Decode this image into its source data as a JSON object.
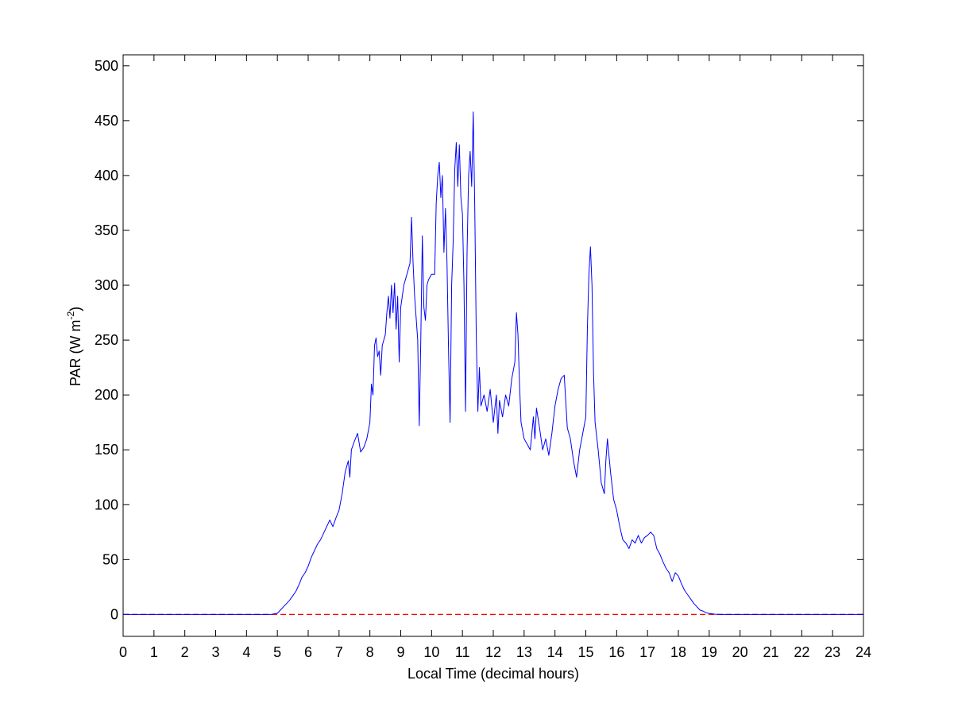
{
  "chart_data": {
    "type": "line",
    "xlabel": "Local Time (decimal hours)",
    "ylabel": {
      "text": "PAR (W m",
      "superscript": "-2",
      "suffix": ")"
    },
    "xlim": [
      0,
      24
    ],
    "xticks": [
      0,
      1,
      2,
      3,
      4,
      5,
      6,
      7,
      8,
      9,
      10,
      11,
      12,
      13,
      14,
      15,
      16,
      17,
      18,
      19,
      20,
      21,
      22,
      23,
      24
    ],
    "ylim": [
      -20,
      510
    ],
    "yticks": [
      0,
      50,
      100,
      150,
      200,
      250,
      300,
      350,
      400,
      450,
      500
    ],
    "grid": false,
    "hline": {
      "value": 0,
      "color": "#ff0000"
    },
    "x": [
      0,
      4.8,
      5.0,
      5.1,
      5.2,
      5.3,
      5.4,
      5.5,
      5.6,
      5.7,
      5.8,
      5.9,
      6.0,
      6.1,
      6.2,
      6.3,
      6.4,
      6.5,
      6.6,
      6.7,
      6.8,
      6.9,
      7.0,
      7.1,
      7.2,
      7.3,
      7.35,
      7.4,
      7.5,
      7.6,
      7.7,
      7.8,
      7.9,
      8.0,
      8.05,
      8.1,
      8.15,
      8.2,
      8.25,
      8.3,
      8.35,
      8.4,
      8.5,
      8.55,
      8.6,
      8.65,
      8.7,
      8.75,
      8.8,
      8.85,
      8.9,
      8.95,
      9.0,
      9.1,
      9.2,
      9.3,
      9.35,
      9.4,
      9.45,
      9.5,
      9.55,
      9.6,
      9.65,
      9.7,
      9.75,
      9.8,
      9.85,
      9.9,
      10.0,
      10.1,
      10.15,
      10.2,
      10.25,
      10.3,
      10.35,
      10.4,
      10.45,
      10.5,
      10.55,
      10.6,
      10.65,
      10.7,
      10.75,
      10.8,
      10.85,
      10.9,
      10.95,
      11.0,
      11.05,
      11.1,
      11.15,
      11.2,
      11.25,
      11.3,
      11.35,
      11.4,
      11.45,
      11.5,
      11.55,
      11.6,
      11.7,
      11.8,
      11.9,
      12.0,
      12.1,
      12.15,
      12.2,
      12.3,
      12.4,
      12.5,
      12.6,
      12.7,
      12.75,
      12.8,
      12.85,
      12.9,
      13.0,
      13.1,
      13.2,
      13.3,
      13.35,
      13.4,
      13.5,
      13.6,
      13.7,
      13.8,
      13.9,
      14.0,
      14.1,
      14.2,
      14.3,
      14.4,
      14.5,
      14.6,
      14.7,
      14.8,
      14.9,
      15.0,
      15.05,
      15.1,
      15.15,
      15.2,
      15.25,
      15.3,
      15.4,
      15.5,
      15.6,
      15.65,
      15.7,
      15.8,
      15.9,
      16.0,
      16.1,
      16.2,
      16.3,
      16.4,
      16.5,
      16.6,
      16.7,
      16.8,
      16.9,
      17.0,
      17.1,
      17.2,
      17.3,
      17.4,
      17.5,
      17.6,
      17.7,
      17.8,
      17.9,
      18.0,
      18.1,
      18.2,
      18.3,
      18.4,
      18.5,
      18.6,
      18.7,
      18.8,
      18.9,
      19.0,
      19.2,
      19.4,
      24
    ],
    "series": [
      {
        "color": "#0000ff",
        "values": [
          0,
          0,
          1,
          4,
          7,
          10,
          13,
          17,
          21,
          27,
          34,
          38,
          44,
          52,
          58,
          64,
          68,
          74,
          80,
          86,
          80,
          88,
          95,
          110,
          130,
          140,
          125,
          150,
          158,
          165,
          148,
          152,
          160,
          175,
          210,
          200,
          245,
          252,
          235,
          240,
          218,
          245,
          255,
          275,
          290,
          270,
          300,
          275,
          302,
          260,
          290,
          230,
          280,
          300,
          310,
          320,
          362,
          320,
          290,
          270,
          250,
          172,
          250,
          345,
          280,
          268,
          300,
          305,
          310,
          310,
          375,
          400,
          412,
          380,
          400,
          330,
          370,
          320,
          240,
          175,
          300,
          340,
          405,
          430,
          390,
          428,
          380,
          365,
          300,
          185,
          330,
          400,
          422,
          390,
          458,
          370,
          250,
          185,
          225,
          190,
          200,
          185,
          205,
          175,
          200,
          165,
          195,
          180,
          200,
          190,
          215,
          230,
          275,
          255,
          210,
          175,
          160,
          155,
          150,
          180,
          160,
          188,
          170,
          150,
          160,
          145,
          165,
          190,
          205,
          215,
          218,
          170,
          160,
          140,
          125,
          150,
          165,
          180,
          260,
          310,
          335,
          300,
          220,
          175,
          150,
          120,
          110,
          140,
          160,
          130,
          105,
          95,
          80,
          68,
          65,
          60,
          68,
          65,
          72,
          65,
          70,
          72,
          75,
          72,
          60,
          55,
          48,
          42,
          38,
          30,
          38,
          35,
          28,
          22,
          18,
          14,
          10,
          7,
          4,
          3,
          1.5,
          0.8,
          0.2,
          0,
          0
        ]
      }
    ]
  }
}
